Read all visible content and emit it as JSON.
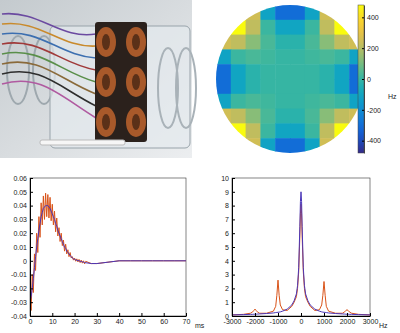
{
  "chart_data": [
    {
      "type": "heatmap",
      "cells": [
        [
          null,
          null,
          248,
          -113,
          -304,
          -304,
          -113,
          248,
          null,
          null
        ],
        [
          null,
          480,
          216,
          8,
          -105,
          -105,
          8,
          216,
          480,
          null
        ],
        [
          248,
          216,
          125,
          32,
          -24,
          -24,
          32,
          125,
          216,
          248
        ],
        [
          -113,
          8,
          32,
          16,
          -1,
          -1,
          16,
          32,
          8,
          -113
        ],
        [
          -304,
          -105,
          -24,
          -1,
          0,
          0,
          -1,
          -24,
          -105,
          -304
        ],
        [
          -304,
          -105,
          -24,
          -1,
          0,
          0,
          -1,
          -24,
          -105,
          -304
        ],
        [
          -113,
          8,
          32,
          16,
          -1,
          -1,
          16,
          32,
          8,
          -113
        ],
        [
          248,
          216,
          125,
          32,
          -24,
          -24,
          32,
          125,
          216,
          248
        ],
        [
          null,
          480,
          216,
          8,
          -105,
          -105,
          8,
          216,
          480,
          null
        ],
        [
          null,
          null,
          248,
          -113,
          -304,
          -304,
          -113,
          248,
          null,
          null
        ]
      ],
      "colorbar_lim": [
        -480,
        480
      ],
      "colorbar_ticks": [
        -400,
        -200,
        0,
        200,
        400
      ],
      "colorbar_label": "Hz",
      "tick_labels": false
    },
    {
      "type": "line",
      "x": [
        0,
        0.5,
        1,
        1.5,
        2,
        2.5,
        3,
        3.5,
        4,
        4.5,
        5,
        5.5,
        6,
        6.5,
        7,
        7.5,
        8,
        8.5,
        9,
        9.5,
        10,
        10.5,
        11,
        11.5,
        12,
        12.5,
        13,
        13.5,
        14,
        14.5,
        15,
        15.5,
        16,
        16.5,
        17,
        17.5,
        18,
        18.5,
        19,
        19.5,
        20,
        20.5,
        21,
        21.5,
        22,
        22.5,
        23,
        23.5,
        24,
        24.5,
        25,
        27.5,
        30,
        35,
        40,
        45,
        50,
        55,
        60,
        65,
        70
      ],
      "series": [
        {
          "color": "#d95319",
          "values": [
            -0.02,
            -0.036,
            -0.01,
            -0.023,
            0.005,
            -0.007,
            0.02,
            0.006,
            0.032,
            0.017,
            0.042,
            0.026,
            0.047,
            0.03,
            0.049,
            0.032,
            0.048,
            0.031,
            0.046,
            0.029,
            0.041,
            0.026,
            0.036,
            0.021,
            0.031,
            0.018,
            0.024,
            0.014,
            0.02,
            0.011,
            0.015,
            0.007,
            0.012,
            0.005,
            0.008,
            0.003,
            0.006,
            0.002,
            0.003,
            0.0005,
            0.002,
            -0.0003,
            0.0014,
            -0.0008,
            0.001,
            -0.0013,
            0.0005,
            -0.0017,
            0,
            -0.0022,
            -0.0004,
            -0.002,
            -0.002,
            -0.001,
            0,
            0,
            0,
            0,
            0,
            0,
            0
          ]
        },
        {
          "color": "#4a36b8",
          "values": [
            -0.03,
            -0.026,
            -0.02,
            -0.013,
            -0.005,
            0.003,
            0.01,
            0.016,
            0.022,
            0.027,
            0.032,
            0.035,
            0.038,
            0.039,
            0.04,
            0.04,
            0.04,
            0.039,
            0.038,
            0.036,
            0.034,
            0.032,
            0.03,
            0.027,
            0.025,
            0.022,
            0.02,
            0.018,
            0.016,
            0.014,
            0.012,
            0.01,
            0.009,
            0.007,
            0.006,
            0.005,
            0.004,
            0.003,
            0.002,
            0.0015,
            0.001,
            0.0007,
            0.0004,
            0.0002,
            0,
            -0.0003,
            -0.0005,
            -0.0007,
            -0.001,
            -0.0012,
            -0.0014,
            -0.002,
            -0.002,
            -0.001,
            0,
            0,
            0,
            0,
            0,
            0,
            0
          ]
        }
      ],
      "xlim": [
        0,
        70
      ],
      "xticks": [
        0,
        10,
        20,
        30,
        40,
        50,
        60,
        70
      ],
      "ylim": [
        -0.04,
        0.06
      ],
      "yticks": [
        -0.04,
        -0.03,
        -0.02,
        -0.01,
        0,
        0.01,
        0.02,
        0.03,
        0.04,
        0.05,
        0.06
      ],
      "xlabel": "ms"
    },
    {
      "type": "line",
      "x": [
        -3000,
        -2500,
        -2200,
        -2100,
        -2050,
        -2000,
        -1950,
        -1900,
        -1800,
        -1500,
        -1200,
        -1100,
        -1050,
        -1000,
        -950,
        -900,
        -800,
        -600,
        -400,
        -300,
        -200,
        -150,
        -100,
        -50,
        -25,
        0,
        25,
        50,
        100,
        150,
        200,
        300,
        400,
        600,
        800,
        900,
        950,
        1000,
        1050,
        1100,
        1200,
        1500,
        1800,
        1900,
        1950,
        2000,
        2050,
        2100,
        2200,
        2500,
        3000
      ],
      "series": [
        {
          "color": "#d95319",
          "values": [
            0.08,
            0.12,
            0.2,
            0.3,
            0.4,
            0.5,
            0.4,
            0.3,
            0.2,
            0.2,
            0.35,
            0.7,
            1.5,
            2.6,
            1.5,
            0.8,
            0.45,
            0.4,
            0.7,
            1.0,
            1.4,
            2.0,
            3.2,
            5.8,
            7.4,
            8.1,
            7.4,
            5.8,
            3.2,
            2.0,
            1.4,
            1.0,
            0.7,
            0.4,
            0.45,
            0.8,
            1.5,
            2.5,
            1.5,
            0.7,
            0.35,
            0.2,
            0.2,
            0.3,
            0.4,
            0.45,
            0.4,
            0.3,
            0.2,
            0.12,
            0.08
          ]
        },
        {
          "color": "#4a36b8",
          "values": [
            0.08,
            0.1,
            0.12,
            0.12,
            0.13,
            0.13,
            0.13,
            0.14,
            0.15,
            0.18,
            0.22,
            0.25,
            0.26,
            0.27,
            0.28,
            0.3,
            0.35,
            0.5,
            0.8,
            1.1,
            1.6,
            2.2,
            3.5,
            6.5,
            8.3,
            9,
            8.3,
            6.5,
            3.5,
            2.2,
            1.6,
            1.1,
            0.8,
            0.5,
            0.35,
            0.3,
            0.28,
            0.27,
            0.26,
            0.25,
            0.22,
            0.18,
            0.15,
            0.14,
            0.13,
            0.13,
            0.13,
            0.12,
            0.12,
            0.1,
            0.08
          ]
        }
      ],
      "xlim": [
        -3000,
        3000
      ],
      "xticks": [
        -3000,
        -2000,
        -1000,
        0,
        1000,
        2000,
        3000
      ],
      "ylim": [
        0,
        10
      ],
      "yticks": [
        0,
        1,
        2,
        3,
        4,
        5,
        6,
        7,
        8,
        9,
        10
      ],
      "xlabel": "Hz"
    }
  ]
}
